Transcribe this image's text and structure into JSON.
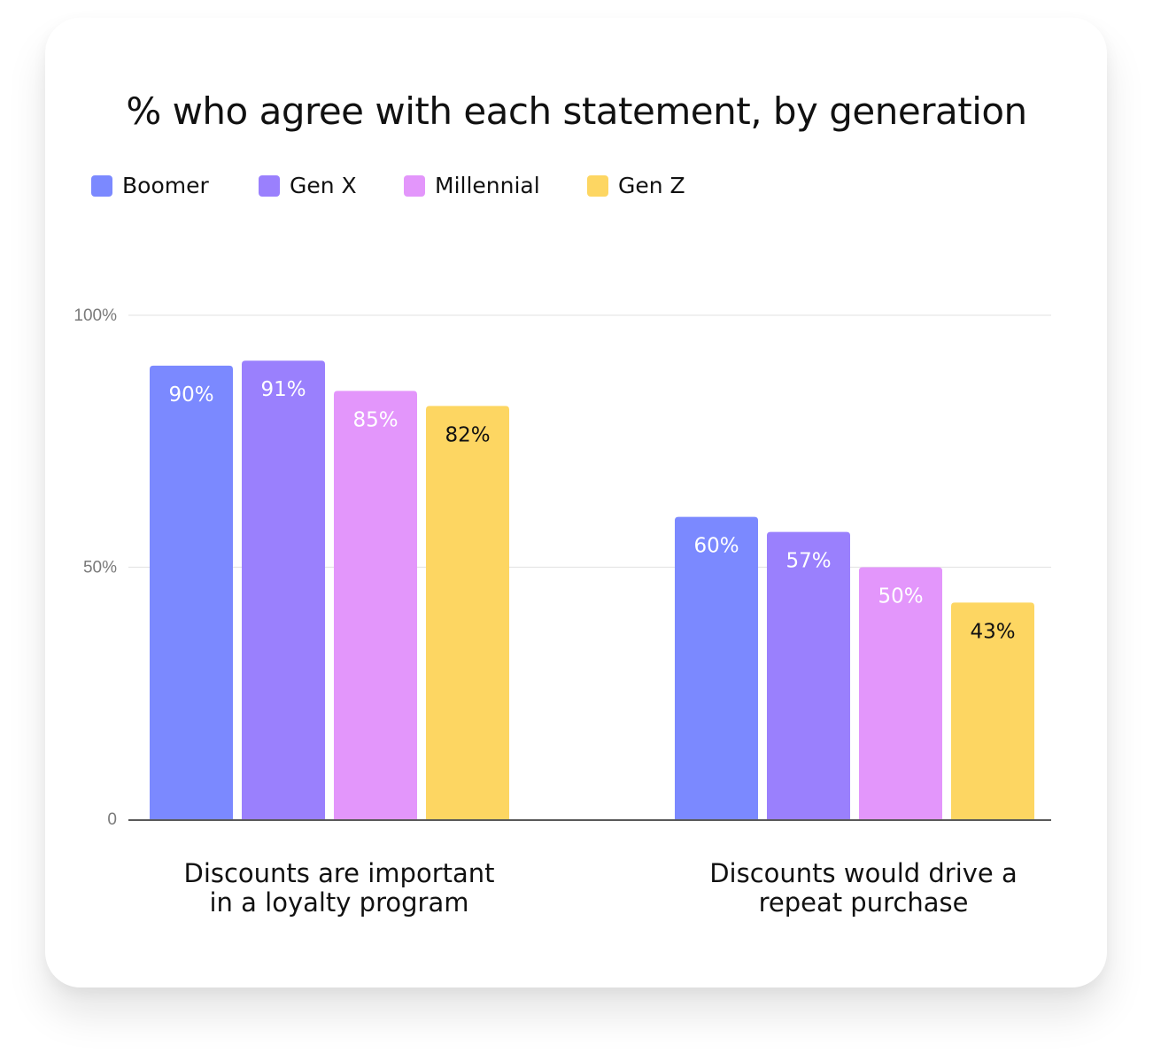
{
  "chart_data": {
    "type": "bar",
    "title": "% who agree with each statement, by generation",
    "categories": [
      "Discounts are important\nin a loyalty program",
      "Discounts would drive a\nrepeat purchase"
    ],
    "series": [
      {
        "name": "Boomer",
        "color": "#7b89ff",
        "values": [
          90,
          60
        ],
        "labels": [
          "90%",
          "60%"
        ],
        "label_color": "#ffffff"
      },
      {
        "name": "Gen X",
        "color": "#9a80fd",
        "values": [
          91,
          57
        ],
        "labels": [
          "91%",
          "57%"
        ],
        "label_color": "#ffffff"
      },
      {
        "name": "Millennial",
        "color": "#e396fb",
        "values": [
          85,
          50
        ],
        "labels": [
          "85%",
          "50%"
        ],
        "label_color": "#ffffff"
      },
      {
        "name": "Gen Z",
        "color": "#fdd662",
        "values": [
          82,
          43
        ],
        "labels": [
          "82%",
          "43%"
        ],
        "label_color": "#111111"
      }
    ],
    "yticks": [
      {
        "value": 0,
        "label": "0"
      },
      {
        "value": 50,
        "label": "50%"
      },
      {
        "value": 100,
        "label": "100%"
      }
    ],
    "ylim": [
      0,
      100
    ],
    "grid": true,
    "legend_position": "top-left"
  }
}
